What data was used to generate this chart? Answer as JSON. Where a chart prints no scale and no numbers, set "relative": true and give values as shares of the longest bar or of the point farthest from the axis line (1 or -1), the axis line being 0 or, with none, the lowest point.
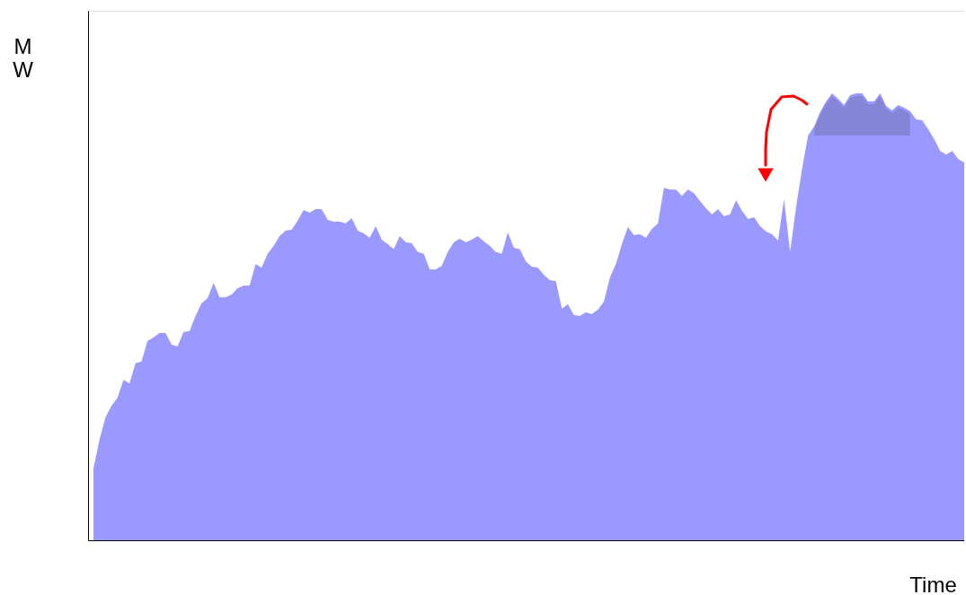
{
  "chart_data": {
    "type": "area",
    "relative": true,
    "ylabel": "MW",
    "xlabel": "Time",
    "tick_labels": false,
    "grid": false,
    "categories": [
      null,
      null,
      null,
      null,
      null,
      null,
      null,
      null,
      null,
      null,
      null,
      null,
      null,
      null,
      null,
      null,
      null,
      null,
      null,
      null,
      null,
      null,
      null,
      null,
      null,
      null,
      null,
      null,
      null,
      null,
      null,
      null,
      null,
      null,
      null,
      null,
      null,
      null,
      null,
      null,
      null,
      null,
      null,
      null,
      null,
      null,
      null,
      null,
      null,
      null,
      null,
      null,
      null,
      null,
      null,
      null,
      null,
      null,
      null,
      null,
      null,
      null,
      null,
      null,
      null,
      null,
      null,
      null,
      null,
      null,
      null,
      null,
      null,
      null,
      null,
      null,
      null,
      null,
      null,
      null,
      null,
      null,
      null,
      null,
      null,
      null,
      null,
      null,
      null,
      null,
      null,
      null,
      null,
      null,
      null,
      null,
      null,
      null,
      null,
      null,
      null,
      null,
      null,
      null,
      null,
      null,
      null,
      null,
      null,
      null,
      null,
      null,
      null,
      null,
      null,
      null,
      null,
      null,
      null,
      null,
      null,
      null,
      null,
      null,
      null,
      null,
      null,
      null,
      null,
      null,
      null,
      null,
      null,
      null,
      null,
      null,
      null,
      null,
      null,
      null,
      null,
      null,
      null,
      null,
      null,
      null
    ],
    "series": [
      {
        "color": "#9999ff",
        "values": [
          0.161,
          0.225,
          0.275,
          0.301,
          0.319,
          0.359,
          0.351,
          0.396,
          0.4,
          0.446,
          0.454,
          0.464,
          0.464,
          0.438,
          0.434,
          0.466,
          0.468,
          0.502,
          0.53,
          0.542,
          0.576,
          0.544,
          0.544,
          0.55,
          0.564,
          0.57,
          0.57,
          0.618,
          0.61,
          0.641,
          0.659,
          0.681,
          0.693,
          0.695,
          0.715,
          0.739,
          0.733,
          0.741,
          0.741,
          0.717,
          0.713,
          0.713,
          0.709,
          0.721,
          0.693,
          0.687,
          0.677,
          0.703,
          0.673,
          0.663,
          0.651,
          0.681,
          0.667,
          0.665,
          0.645,
          0.641,
          0.606,
          0.606,
          0.614,
          0.645,
          0.667,
          0.675,
          0.667,
          0.673,
          0.681,
          0.669,
          0.659,
          0.645,
          0.641,
          0.689,
          0.655,
          0.651,
          0.624,
          0.612,
          0.61,
          0.594,
          0.582,
          0.58,
          0.518,
          0.528,
          0.504,
          0.502,
          0.51,
          0.506,
          0.516,
          0.534,
          0.588,
          0.618,
          0.663,
          0.701,
          0.683,
          0.685,
          0.677,
          0.697,
          0.709,
          0.789,
          0.785,
          0.785,
          0.771,
          0.785,
          0.777,
          0.759,
          0.743,
          0.729,
          0.741,
          0.725,
          0.729,
          0.761,
          0.737,
          0.719,
          0.723,
          0.703,
          0.691,
          0.685,
          0.671,
          0.763,
          0.645,
          0.745,
          0.831,
          0.906,
          0.926,
          0.958,
          0.982,
          1,
          0.988,
          0.974,
          0.996,
          1,
          1,
          0.982,
          0.982,
          1,
          0.972,
          0.962,
          0.974,
          0.968,
          0.96,
          0.942,
          0.94,
          0.92,
          0.898,
          0.871,
          0.863,
          0.871,
          0.853,
          0.845
        ]
      }
    ]
  }
}
